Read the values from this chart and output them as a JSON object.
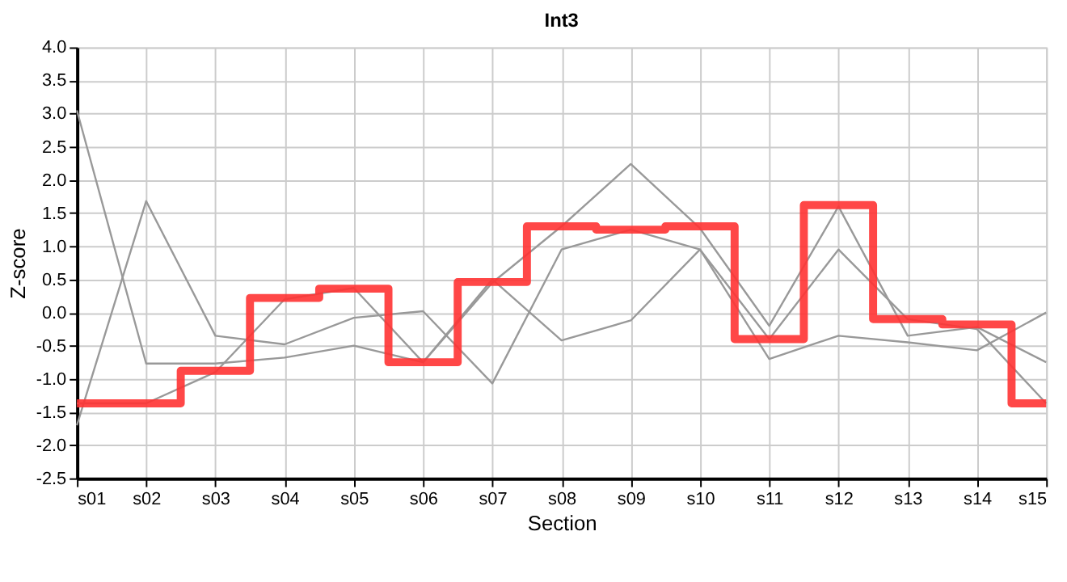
{
  "chart_data": {
    "type": "line",
    "title": "Int3",
    "xlabel": "Section",
    "ylabel": "Z-score",
    "categories": [
      "s01",
      "s02",
      "s03",
      "s04",
      "s05",
      "s06",
      "s07",
      "s08",
      "s09",
      "s10",
      "s11",
      "s12",
      "s13",
      "s14",
      "s15"
    ],
    "series": [
      {
        "color": "#999999",
        "values": [
          3.05,
          -0.77,
          -0.77,
          -0.68,
          -0.5,
          -0.75,
          0.45,
          1.3,
          2.24,
          1.27,
          -0.2,
          1.6,
          -0.35,
          -0.22,
          -0.75
        ]
      },
      {
        "color": "#999999",
        "values": [
          -1.7,
          1.68,
          -0.35,
          -0.48,
          -0.08,
          0.02,
          -1.07,
          0.95,
          1.25,
          0.95,
          -0.4,
          0.95,
          -0.1,
          -0.25,
          -1.37
        ]
      },
      {
        "color": "#999999",
        "values": [
          -1.37,
          -1.37,
          -0.9,
          0.2,
          0.37,
          -0.75,
          0.5,
          -0.42,
          -0.12,
          0.95,
          -0.7,
          -0.35,
          -0.45,
          -0.57,
          0.0
        ]
      },
      {
        "color": "#ff3333",
        "type": "step",
        "values": [
          -1.37,
          -1.37,
          -0.88,
          0.22,
          0.36,
          -0.75,
          0.46,
          1.3,
          1.25,
          1.3,
          -0.4,
          1.62,
          -0.1,
          -0.18,
          -1.37
        ]
      }
    ],
    "ylim": [
      -2.5,
      4.0
    ],
    "yticks": [
      {
        "value": -2.5,
        "label": "-2.5"
      },
      {
        "value": -2,
        "label": "-2.0"
      },
      {
        "value": -1.5,
        "label": "-1.5"
      },
      {
        "value": -1,
        "label": "-1.0"
      },
      {
        "value": -0.5,
        "label": "-0.5"
      },
      {
        "value": 0,
        "label": "0.0"
      },
      {
        "value": 0.5,
        "label": "0.5"
      },
      {
        "value": 1,
        "label": "1.0"
      },
      {
        "value": 1.5,
        "label": "1.5"
      },
      {
        "value": 2,
        "label": "2.0"
      },
      {
        "value": 2.5,
        "label": "2.5"
      },
      {
        "value": 3,
        "label": "3.0"
      },
      {
        "value": 3.5,
        "label": "3.5"
      },
      {
        "value": 4,
        "label": "4.0"
      }
    ],
    "grid": true,
    "marker": "none",
    "line_style": "solid"
  }
}
